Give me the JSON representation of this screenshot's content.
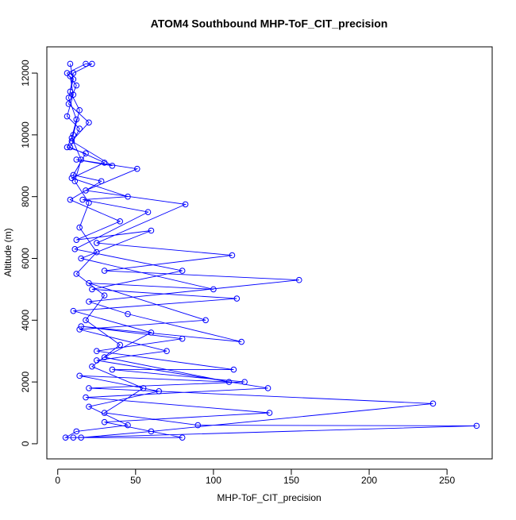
{
  "chart_data": {
    "type": "line",
    "title": "ATOM4 Southbound MHP-ToF_CIT_precision",
    "x_label": "MHP-ToF_CIT_precision",
    "y_label": "Altitude (m)",
    "color": "#0000ff",
    "markers": "open-circle",
    "xlim": [
      -7,
      279
    ],
    "ylim": [
      -490,
      12850
    ],
    "xticks": [
      0,
      50,
      100,
      150,
      200,
      250
    ],
    "yticks": [
      0,
      2000,
      4000,
      6000,
      8000,
      10000,
      12000
    ],
    "x": [
      8,
      10,
      7,
      12,
      9,
      15,
      11,
      20,
      14,
      25,
      12,
      30,
      18,
      40,
      22,
      55,
      30,
      90,
      269,
      10,
      15,
      60,
      241,
      20,
      120,
      35,
      113,
      25,
      80,
      15,
      118,
      45,
      20,
      155,
      30,
      112,
      25,
      82,
      18,
      51,
      12,
      35,
      9,
      20,
      7,
      12,
      6,
      18,
      22,
      10,
      8,
      14,
      10,
      6,
      18,
      10,
      28,
      8,
      40,
      12,
      60,
      15,
      100,
      20,
      95,
      14,
      70,
      25,
      135,
      18,
      136,
      30,
      80,
      5,
      12,
      45,
      20,
      65,
      14,
      110,
      30,
      60,
      10,
      115,
      22,
      80,
      11,
      58,
      16,
      45,
      9,
      30,
      8,
      14,
      6,
      10,
      8
    ],
    "values": [
      12300,
      11800,
      11200,
      10500,
      9900,
      9200,
      8500,
      7800,
      7000,
      6200,
      5500,
      4800,
      4000,
      3200,
      2500,
      1800,
      1000,
      600,
      580,
      200,
      200,
      400,
      1300,
      1800,
      2000,
      2400,
      2400,
      3000,
      3400,
      3800,
      3300,
      4200,
      4600,
      5300,
      5600,
      6100,
      6500,
      7750,
      8200,
      8900,
      9200,
      9000,
      9800,
      10400,
      11000,
      11600,
      12000,
      12300,
      12300,
      12000,
      11400,
      10800,
      10000,
      9600,
      9400,
      8700,
      8500,
      7900,
      7200,
      6600,
      6900,
      6000,
      5000,
      5200,
      4000,
      3700,
      3000,
      2700,
      1800,
      1500,
      1000,
      700,
      200,
      200,
      400,
      600,
      1200,
      1700,
      2200,
      2000,
      2800,
      3600,
      4300,
      4700,
      5000,
      5600,
      6300,
      7500,
      7900,
      8000,
      8600,
      9100,
      9600,
      10200,
      10600,
      11300,
      11900
    ]
  }
}
